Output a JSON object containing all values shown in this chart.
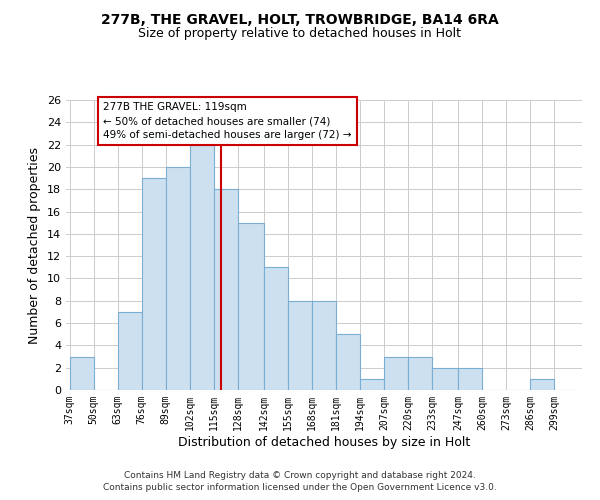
{
  "title1": "277B, THE GRAVEL, HOLT, TROWBRIDGE, BA14 6RA",
  "title2": "Size of property relative to detached houses in Holt",
  "xlabel": "Distribution of detached houses by size in Holt",
  "ylabel": "Number of detached properties",
  "bar_color": "#cde0f0",
  "bar_edge_color": "#7aadd4",
  "bin_edges": [
    37,
    50,
    63,
    76,
    89,
    102,
    115,
    128,
    142,
    155,
    168,
    181,
    194,
    207,
    220,
    233,
    247,
    260,
    273,
    286,
    299,
    312
  ],
  "bar_heights": [
    3,
    0,
    7,
    19,
    20,
    22,
    18,
    15,
    11,
    8,
    8,
    5,
    1,
    3,
    3,
    2,
    2,
    0,
    0,
    1,
    0
  ],
  "tick_labels": [
    "37sqm",
    "50sqm",
    "63sqm",
    "76sqm",
    "89sqm",
    "102sqm",
    "115sqm",
    "128sqm",
    "142sqm",
    "155sqm",
    "168sqm",
    "181sqm",
    "194sqm",
    "207sqm",
    "220sqm",
    "233sqm",
    "247sqm",
    "260sqm",
    "273sqm",
    "286sqm",
    "299sqm"
  ],
  "vline_x": 119,
  "vline_color": "#cc0000",
  "ylim": [
    0,
    26
  ],
  "yticks": [
    0,
    2,
    4,
    6,
    8,
    10,
    12,
    14,
    16,
    18,
    20,
    22,
    24,
    26
  ],
  "annotation_title": "277B THE GRAVEL: 119sqm",
  "annotation_line1": "← 50% of detached houses are smaller (74)",
  "annotation_line2": "49% of semi-detached houses are larger (72) →",
  "annotation_box_color": "#ffffff",
  "annotation_box_edge": "#cc0000",
  "footer1": "Contains HM Land Registry data © Crown copyright and database right 2024.",
  "footer2": "Contains public sector information licensed under the Open Government Licence v3.0.",
  "background_color": "#ffffff",
  "grid_color": "#cccccc"
}
